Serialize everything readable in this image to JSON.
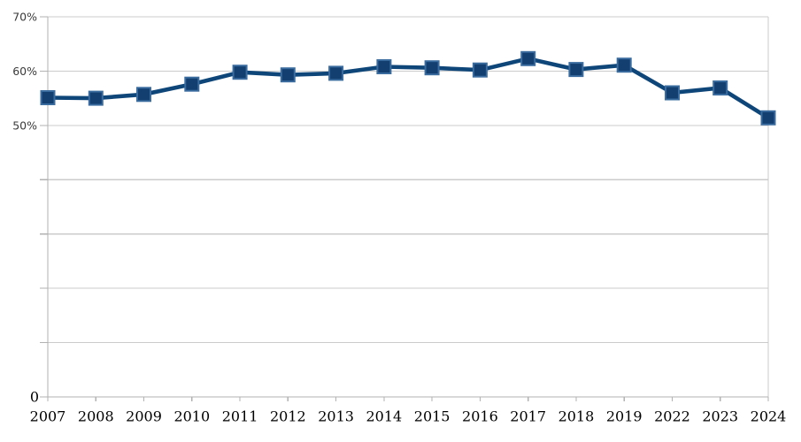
{
  "window": {
    "background_color": "#ffffff"
  },
  "chart_data": {
    "type": "line",
    "title": "",
    "xlabel": "",
    "ylabel": "",
    "categories": [
      "2007",
      "2008",
      "2009",
      "2010",
      "2011",
      "2012",
      "2013",
      "2014",
      "2015",
      "2016",
      "2017",
      "2018",
      "2019",
      "2022",
      "2023",
      "2024"
    ],
    "series": [
      {
        "name": "",
        "values": [
          55.1,
          55.0,
          55.7,
          57.6,
          59.8,
          59.3,
          59.6,
          60.8,
          60.6,
          60.2,
          62.3,
          60.3,
          61.1,
          56.0,
          56.9,
          51.4
        ]
      }
    ],
    "ylim": [
      0,
      70
    ],
    "grid": true,
    "gridline_step": 10,
    "y_tick_labels": [
      {
        "value": 70,
        "label": "70%",
        "style": "percent"
      },
      {
        "value": 60,
        "label": "60%",
        "style": "percent"
      },
      {
        "value": 50,
        "label": "50%",
        "style": "percent"
      },
      {
        "value": 0,
        "label": "0",
        "style": "zero"
      }
    ],
    "legend": "none",
    "marker_shape": "square",
    "colors": {
      "line": "#0f4679",
      "marker_fill": "#123e70",
      "marker_border": "#3b6c9f",
      "gridline": "#cbcbcb",
      "axis": "#b2b2b2",
      "y_label_text": "#3a3a3a",
      "x_label_text": "#000000",
      "background": "#ffffff"
    }
  }
}
